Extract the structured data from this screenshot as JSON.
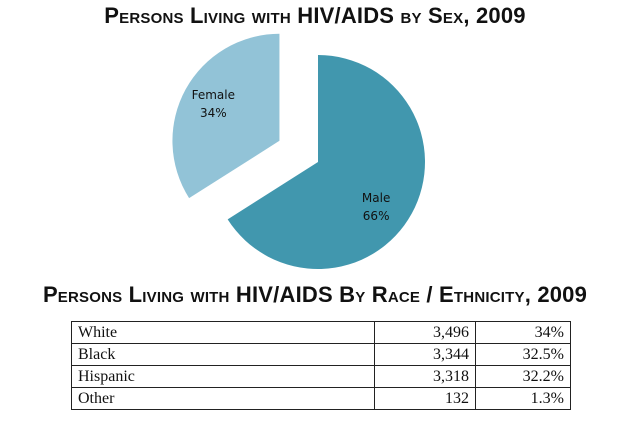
{
  "chart_data": [
    {
      "type": "pie",
      "title": "Persons Living with HIV/AIDS by Sex, 2009",
      "slices": [
        {
          "label": "Male",
          "value": 66,
          "value_label": "66%",
          "color": "#4197ae",
          "exploded": false
        },
        {
          "label": "Female",
          "value": 34,
          "value_label": "34%",
          "color": "#92c3d7",
          "exploded": true
        }
      ],
      "start_angle_deg": 0,
      "direction": "clockwise"
    },
    {
      "type": "table",
      "title": "Persons Living with HIV/AIDS By Race / Ethnicity, 2009",
      "rows": [
        {
          "label": "White",
          "count": "3,496",
          "percent": "34%"
        },
        {
          "label": "Black",
          "count": "3,344",
          "percent": "32.5%"
        },
        {
          "label": "Hispanic",
          "count": "3,318",
          "percent": "32.2%"
        },
        {
          "label": "Other",
          "count": "132",
          "percent": "1.3%"
        }
      ]
    }
  ]
}
